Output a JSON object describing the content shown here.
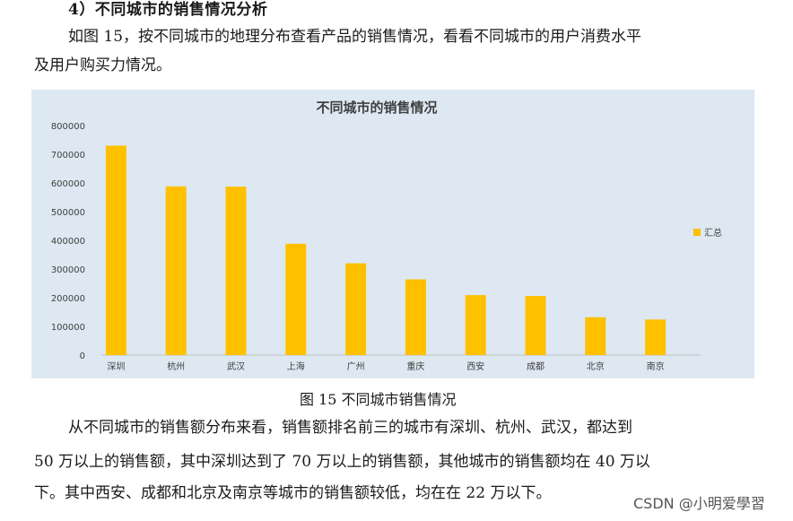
{
  "heading": "4）不同城市的销售情况分析",
  "intro": {
    "line1": "如图 15，按不同城市的地理分布查看产品的销售情况，看看不同城市的用户消费水平",
    "line2": "及用户购买力情况。"
  },
  "chart_data": {
    "type": "bar",
    "title": "不同城市的销售情况",
    "categories": [
      "深圳",
      "杭州",
      "武汉",
      "上海",
      "广州",
      "重庆",
      "西安",
      "成都",
      "北京",
      "南京"
    ],
    "series": [
      {
        "name": "汇总",
        "values": [
          730000,
          588000,
          587000,
          388000,
          320000,
          264000,
          209000,
          206000,
          132000,
          124000
        ]
      }
    ],
    "yticks": [
      "800000",
      "700000",
      "600000",
      "500000",
      "400000",
      "300000",
      "200000",
      "100000",
      "0"
    ],
    "ylim": [
      0,
      800000
    ],
    "grid": false,
    "legend_position": "right",
    "bar_color": "#ffc000",
    "xlabel": "",
    "ylabel": ""
  },
  "caption": "图 15  不同城市销售情况",
  "analysis": {
    "line1": "从不同城市的销售额分布来看，销售额排名前三的城市有深圳、杭州、武汉，都达到",
    "line2": "50 万以上的销售额，其中深圳达到了 70 万以上的销售额，其他城市的销售额均在 40 万以",
    "line3": "下。其中西安、成都和北京及南京等城市的销售额较低，均在在 22 万以下。"
  },
  "watermark": "CSDN @小明爱學習"
}
